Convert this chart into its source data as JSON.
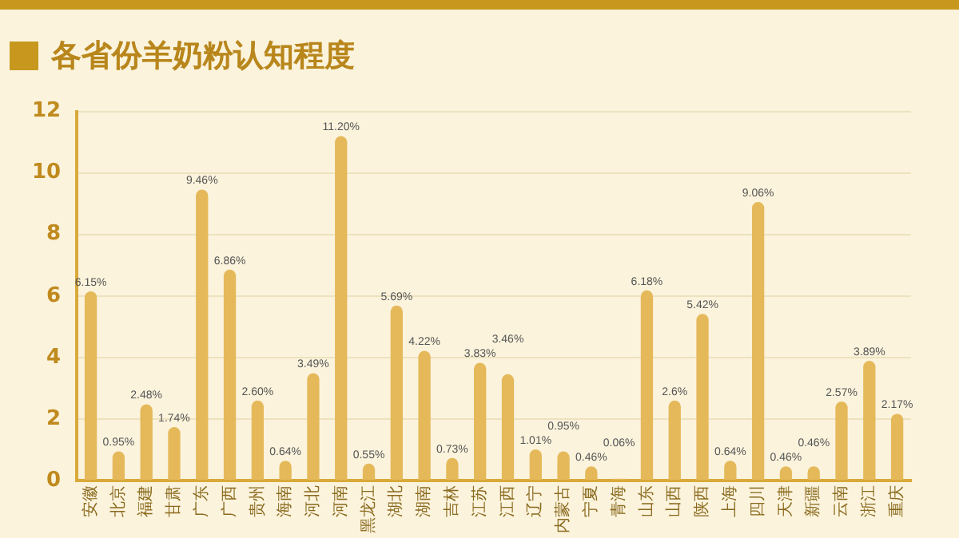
{
  "chart_data": {
    "type": "bar",
    "title": "各省份羊奶粉认知程度",
    "categories": [
      "安徽",
      "北京",
      "福建",
      "甘肃",
      "广东",
      "广西",
      "贵州",
      "海南",
      "河北",
      "河南",
      "黑龙江",
      "湖北",
      "湖南",
      "吉林",
      "江苏",
      "江西",
      "辽宁",
      "内蒙古",
      "宁夏",
      "青海",
      "山东",
      "山西",
      "陕西",
      "上海",
      "四川",
      "天津",
      "新疆",
      "云南",
      "浙江",
      "重庆"
    ],
    "values": [
      6.15,
      0.95,
      2.48,
      1.74,
      9.46,
      6.86,
      2.6,
      0.64,
      3.49,
      11.2,
      0.55,
      5.69,
      4.22,
      0.73,
      3.83,
      3.46,
      1.01,
      0.95,
      0.46,
      0.06,
      6.18,
      2.6,
      5.42,
      0.64,
      9.06,
      0.46,
      0.46,
      2.57,
      3.89,
      2.17
    ],
    "value_labels": [
      "6.15%",
      "0.95%",
      "2.48%",
      "1.74%",
      "9.46%",
      "6.86%",
      "2.60%",
      "0.64%",
      "3.49%",
      "11.20%",
      "0.55%",
      "5.69%",
      "4.22%",
      "0.73%",
      "3.83%",
      "3.46%",
      "1.01%",
      "0.95%",
      "0.46%",
      "0.06%",
      "6.18%",
      "2.6%",
      "5.42%",
      "0.64%",
      "9.06%",
      "0.46%",
      "0.46%",
      "2.57%",
      "3.89%",
      "2.17%"
    ],
    "color": "#e5b95a",
    "ylim": [
      0,
      12
    ],
    "yticks": [
      0,
      2,
      4,
      6,
      8,
      10,
      12
    ],
    "grid": "y"
  }
}
